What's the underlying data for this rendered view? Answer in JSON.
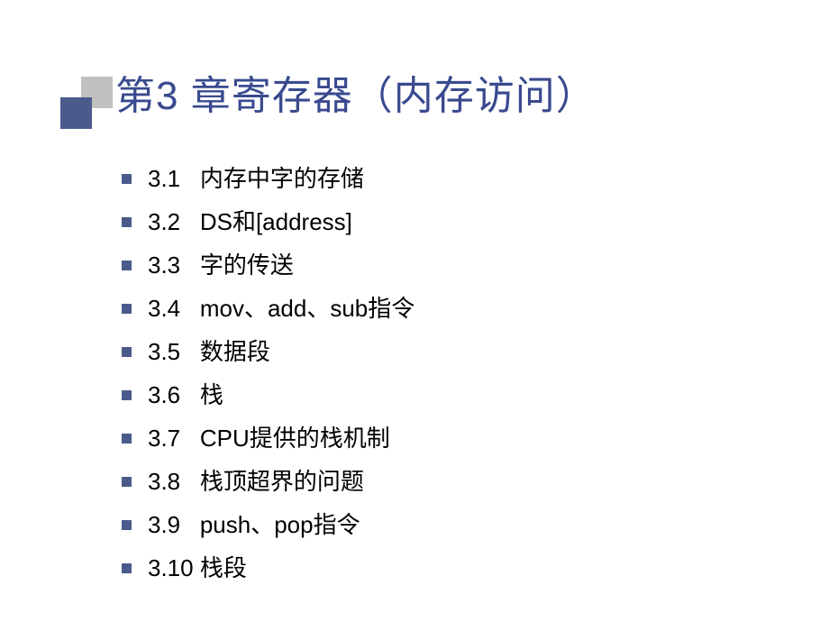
{
  "slide": {
    "title": "第3 章寄存器（内存访问）",
    "title_color": "#3a4a8f",
    "title_fontsize": 44,
    "decoration": {
      "top_square_color": "#c0c0c0",
      "bottom_square_color": "#4a5a8a"
    },
    "bullet_color": "#4a5a8a",
    "item_fontsize": 26,
    "item_color": "#000000",
    "background_color": "#ffffff",
    "items": [
      {
        "number": "3.1",
        "text": "内存中字的存储"
      },
      {
        "number": "3.2",
        "text": "DS和[address]"
      },
      {
        "number": "3.3",
        "text": "字的传送"
      },
      {
        "number": "3.4",
        "text": "mov、add、sub指令"
      },
      {
        "number": "3.5",
        "text": "数据段"
      },
      {
        "number": "3.6",
        "text": "栈"
      },
      {
        "number": "3.7",
        "text": "CPU提供的栈机制"
      },
      {
        "number": "3.8",
        "text": "栈顶超界的问题"
      },
      {
        "number": "3.9",
        "text": "push、pop指令"
      },
      {
        "number": "3.10",
        "text": "栈段"
      }
    ]
  }
}
